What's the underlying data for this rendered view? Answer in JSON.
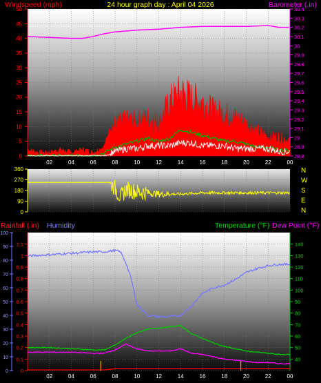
{
  "header": {
    "title": "24 hour graph day : April 04 2026",
    "left_label": "Windspeed (mph)",
    "right_label": "Barometer (.in)"
  },
  "bottom_header": {
    "rainfall_label": "Rainfall (.in)",
    "humidity_label": "Humidity",
    "temperature_label": "Temperature (°F)",
    "dewpoint_label": "Dew Point (°F)"
  },
  "colors": {
    "windspeed": "#ff0000",
    "gust": "#00b000",
    "avg_wind": "#ffffff",
    "barometer": "#ff00ff",
    "wind_dir": "#ffff00",
    "humidity": "#7777ff",
    "temperature": "#00cc00",
    "dewpoint": "#ff00ff",
    "rain": "#ff0000",
    "rain_ticks": "#ffaa00"
  },
  "chart_data": [
    {
      "type": "line",
      "title": "24 hour graph day : April 04 2026",
      "ylabel": "Windspeed (mph)",
      "y2label": "Barometer (.in)",
      "ylim": [
        0,
        50
      ],
      "y2lim": [
        28.8,
        30.4
      ],
      "x_ticks": [
        "02",
        "04",
        "06",
        "08",
        "10",
        "12",
        "14",
        "16",
        "18",
        "20",
        "22",
        "00"
      ],
      "y_ticks": [
        0,
        5,
        10,
        15,
        20,
        25,
        30,
        35,
        40,
        45,
        50
      ],
      "y2_ticks": [
        "28.8",
        "28.9",
        "29",
        "29.1",
        "29.2",
        "29.3",
        "29.4",
        "29.5",
        "29.6",
        "29.7",
        "29.8",
        "29.9",
        "30",
        "30.1",
        "30.2",
        "30.3",
        "30.4"
      ],
      "series": [
        {
          "name": "Barometer (.in)",
          "axis": "right",
          "x": [
            0,
            2,
            4,
            5,
            6,
            7,
            8,
            10,
            12,
            14,
            16,
            18,
            20,
            22,
            23,
            24
          ],
          "values": [
            30.1,
            30.09,
            30.08,
            30.08,
            30.1,
            30.13,
            30.15,
            30.17,
            30.18,
            30.2,
            30.21,
            30.21,
            30.21,
            30.22,
            30.2,
            30.2
          ]
        },
        {
          "name": "Windspeed (mph)",
          "axis": "left",
          "x": [
            0,
            1,
            2,
            3,
            4,
            5,
            6,
            7,
            7.5,
            8,
            9,
            10,
            11,
            12,
            13,
            14,
            15,
            16,
            17,
            18,
            19,
            20,
            21,
            22,
            23,
            24
          ],
          "values": [
            2,
            1,
            1,
            2,
            1,
            2,
            1,
            3,
            9,
            10,
            11,
            11,
            12,
            10,
            17,
            20,
            18,
            17,
            14,
            13,
            12,
            10,
            8,
            6,
            6,
            5
          ]
        },
        {
          "name": "gust",
          "axis": "left",
          "x": [
            0,
            6,
            7,
            8,
            9,
            10,
            11,
            12,
            13,
            14,
            15,
            16,
            17,
            18,
            19,
            20,
            21,
            22,
            23,
            24
          ],
          "values": [
            0,
            0,
            1,
            3,
            4,
            5,
            6,
            5,
            6,
            9,
            8,
            7,
            6,
            5,
            5,
            4,
            3,
            3,
            2,
            2
          ]
        },
        {
          "name": "avg",
          "axis": "left",
          "x": [
            0,
            6,
            7,
            8,
            9,
            10,
            11,
            12,
            13,
            14,
            15,
            16,
            17,
            18,
            19,
            20,
            21,
            22,
            23,
            24
          ],
          "values": [
            0,
            0,
            0,
            1,
            2,
            2,
            3,
            3,
            3,
            4,
            4,
            3,
            3,
            3,
            2,
            2,
            2,
            2,
            1,
            1
          ]
        }
      ]
    },
    {
      "type": "line",
      "title": "",
      "ylim": [
        0,
        360
      ],
      "y_ticks": [
        0,
        90,
        180,
        270,
        360
      ],
      "compass": [
        "N",
        "W",
        "S",
        "E",
        "N"
      ],
      "series": [
        {
          "name": "wind direction",
          "x": [
            0,
            7.5,
            8,
            8.5,
            9,
            10,
            11,
            12,
            14,
            16,
            18,
            20,
            22,
            24
          ],
          "values": [
            248,
            248,
            200,
            120,
            190,
            170,
            160,
            150,
            150,
            160,
            160,
            160,
            160,
            160
          ]
        }
      ]
    },
    {
      "type": "line",
      "title": "",
      "ylabel": "Rainfall (.in)",
      "y2label": "Temperature (°F) Dew Point (°F)",
      "ylim": [
        0,
        1.2
      ],
      "humidity_ylim": [
        0,
        100
      ],
      "y2lim": [
        30,
        150
      ],
      "y_ticks": [
        "0",
        "0.1",
        "0.2",
        "0.3",
        "0.4",
        "0.5",
        "0.6",
        "0.7",
        "0.8",
        "0.9",
        "1",
        "1.1"
      ],
      "humidity_ticks": [
        0,
        10,
        20,
        30,
        40,
        50,
        60,
        70,
        80,
        90,
        100
      ],
      "y2_ticks": [
        40,
        50,
        60,
        70,
        80,
        90,
        100,
        110,
        120,
        130,
        140
      ],
      "x_ticks": [
        "02",
        "04",
        "06",
        "08",
        "10",
        "12",
        "14",
        "16",
        "18",
        "20",
        "22",
        "00"
      ],
      "series": [
        {
          "name": "Humidity",
          "axis": "humidity",
          "x": [
            0,
            2,
            4,
            6,
            7,
            8,
            8.5,
            9,
            9.5,
            10,
            11,
            12,
            13,
            14,
            15,
            16,
            17,
            18,
            19,
            20,
            21,
            22,
            23,
            24
          ],
          "values": [
            83,
            84,
            85,
            86,
            86,
            87,
            86,
            78,
            66,
            48,
            40,
            39,
            39,
            40,
            47,
            56,
            60,
            62,
            66,
            71,
            74,
            76,
            77,
            77
          ]
        },
        {
          "name": "Temperature (°F)",
          "axis": "right",
          "x": [
            0,
            2,
            4,
            6,
            7,
            8,
            9,
            10,
            11,
            12,
            13,
            14,
            15,
            16,
            17,
            18,
            19,
            20,
            21,
            22,
            23,
            24
          ],
          "values": [
            50,
            50,
            49,
            48,
            48,
            52,
            58,
            63,
            66,
            67,
            68,
            69,
            62,
            58,
            54,
            51,
            49,
            47,
            46,
            45,
            44,
            44
          ]
        },
        {
          "name": "Dew Point (°F)",
          "axis": "right",
          "x": [
            0,
            2,
            4,
            6,
            7,
            8,
            9,
            10,
            11,
            12,
            13,
            14,
            15,
            16,
            17,
            18,
            19,
            20,
            21,
            22,
            23,
            24
          ],
          "values": [
            46,
            46,
            46,
            45,
            45,
            48,
            53,
            49,
            47,
            47,
            47,
            49,
            45,
            44,
            42,
            40,
            39,
            38,
            37,
            37,
            36,
            36
          ]
        },
        {
          "name": "Rainfall (.in)",
          "axis": "left",
          "x": [
            0,
            7,
            8,
            24
          ],
          "values": [
            0,
            0,
            0.01,
            0.01
          ]
        }
      ]
    }
  ]
}
